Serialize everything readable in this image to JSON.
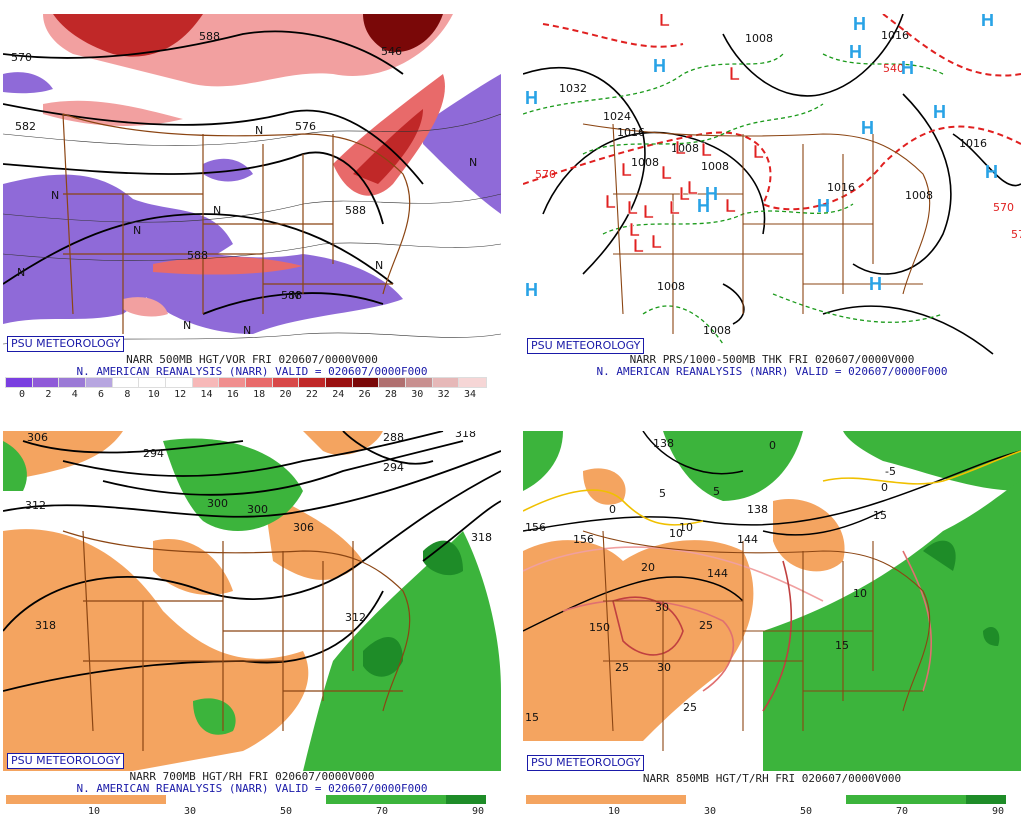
{
  "branding": "PSU METEOROLOGY",
  "panels": [
    {
      "id": "500mb",
      "caption_line1": "NARR 500MB HGT/VOR FRI 020607/0000V000",
      "caption_line2": "N. AMERICAN REANALYSIS (NARR) VALID = 020607/0000F000",
      "colorbar_ticks": [
        "0",
        "2",
        "4",
        "6",
        "8",
        "10",
        "12",
        "14",
        "16",
        "18",
        "20",
        "22",
        "24",
        "26",
        "28",
        "30",
        "32",
        "34"
      ],
      "colorbar_colors": [
        "#7a3fe0",
        "#8f5ad8",
        "#9b7ad6",
        "#b7a6e0",
        "#ffffff",
        "#ffffff",
        "#ffffff",
        "#f7b8b8",
        "#f08e8e",
        "#e86a6a",
        "#d84848",
        "#c02828",
        "#9a1010",
        "#7a0808",
        "#b07070",
        "#c89090",
        "#e6b8b8",
        "#f6d6d6"
      ],
      "contour_labels": [
        "570",
        "582",
        "588",
        "546",
        "576",
        "588",
        "588",
        "588"
      ],
      "vorticity_labels": [
        "N",
        "N",
        "N",
        "N",
        "N",
        "N",
        "N",
        "N",
        "N",
        "N"
      ]
    },
    {
      "id": "prs-thk",
      "caption_line1": "NARR PRS/1000-500MB THK FRI 020607/0000V000",
      "caption_line2": "N. AMERICAN REANALYSIS (NARR) VALID = 020607/0000F000",
      "isobar_labels": [
        "1032",
        "1024",
        "1016",
        "1008",
        "1008",
        "1008",
        "1008",
        "1016",
        "1016",
        "1008",
        "1008",
        "1016",
        "1008"
      ],
      "thickness_labels": [
        "570",
        "540",
        "570",
        "570"
      ],
      "lows": [
        "L",
        "L",
        "L",
        "L",
        "L",
        "L",
        "L",
        "L",
        "L",
        "L",
        "L",
        "L",
        "L",
        "L",
        "L",
        "L",
        "L"
      ],
      "highs": [
        "H",
        "H",
        "H",
        "H",
        "H",
        "H",
        "H",
        "H",
        "H",
        "H",
        "H",
        "H",
        "H",
        "H"
      ]
    },
    {
      "id": "700mb",
      "caption_line1": "NARR 700MB HGT/RH FRI 020607/0000V000",
      "caption_line2": "N. AMERICAN REANALYSIS (NARR) VALID = 020607/0000F000",
      "colorbar_ticks": [
        "10",
        "30",
        "50",
        "70",
        "90"
      ],
      "contour_labels": [
        "306",
        "312",
        "318",
        "318",
        "312",
        "294",
        "288",
        "300",
        "306",
        "294",
        "300",
        "318"
      ]
    },
    {
      "id": "850mb",
      "caption_line1": "NARR 850MB HGT/T/RH FRI 020607/0000V000",
      "colorbar_ticks": [
        "10",
        "30",
        "50",
        "70",
        "90"
      ],
      "height_labels": [
        "138",
        "156",
        "150",
        "144",
        "138",
        "144",
        "156"
      ],
      "temp_labels": [
        "0",
        "0",
        "5",
        "5",
        "10",
        "10",
        "15",
        "20",
        "25",
        "25",
        "25",
        "30",
        "30",
        "15",
        "15",
        "-5",
        "0",
        "10"
      ]
    }
  ],
  "colors": {
    "vort_neg": "#8f6ad8",
    "vort_pos_light": "#f2a0a0",
    "vort_pos_dark": "#c02828",
    "rh_dry": "#f4a460",
    "rh_moist": "#3cb43c",
    "rh_moist_dark": "#1e8c28",
    "border": "#8b4513",
    "isobar": "#000000",
    "thickness": "#e02020",
    "dewpt": "#1a9a1a",
    "high": "#29a3e6",
    "low": "#e02020",
    "brand": "#1a1aa8"
  }
}
